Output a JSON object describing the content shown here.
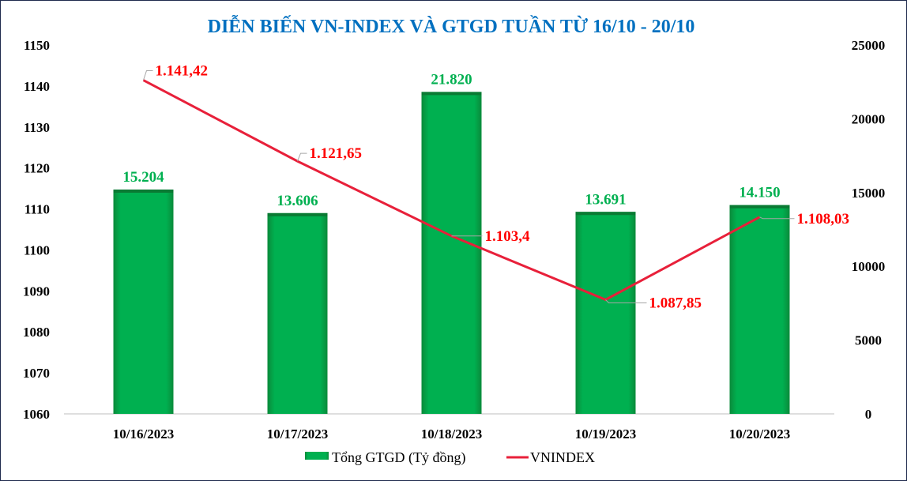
{
  "chart_data": {
    "type": "bar+line",
    "title": "DIỄN BIẾN VN-INDEX VÀ GTGD TUẦN TỪ 16/10 - 20/10",
    "categories": [
      "10/16/2023",
      "10/17/2023",
      "10/18/2023",
      "10/19/2023",
      "10/20/2023"
    ],
    "series": [
      {
        "name": "Tổng GTGD (Tỷ đồng)",
        "type": "bar",
        "axis": "right",
        "values": [
          15204,
          13606,
          21820,
          13691,
          14150
        ],
        "labels": [
          "15.204",
          "13.606",
          "21.820",
          "13.691",
          "14.150"
        ],
        "color": "#00b050"
      },
      {
        "name": "VNINDEX",
        "type": "line",
        "axis": "left",
        "values": [
          1141.42,
          1121.65,
          1103.4,
          1087.85,
          1108.03
        ],
        "labels": [
          "1.141,42",
          "1.121,65",
          "1.103,4",
          "1.087,85",
          "1.108,03"
        ],
        "color": "#e8203a"
      }
    ],
    "left_axis": {
      "range": [
        1060,
        1150
      ],
      "ticks": [
        "1060",
        "1070",
        "1080",
        "1090",
        "1100",
        "1110",
        "1120",
        "1130",
        "1140",
        "1150"
      ]
    },
    "right_axis": {
      "range": [
        0,
        25000
      ],
      "ticks": [
        "0",
        "5000",
        "10000",
        "15000",
        "20000",
        "25000"
      ]
    },
    "grid": false,
    "legend": "bottom",
    "title_color": "#0070c0",
    "line_label_color": "#ff0000",
    "bar_label_color": "#00b050"
  }
}
